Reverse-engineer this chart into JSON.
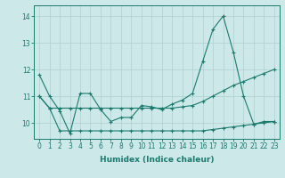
{
  "line1_x": [
    0,
    1,
    2,
    3,
    4,
    5,
    6,
    7,
    8,
    9,
    10,
    11,
    12,
    13,
    14,
    15,
    16,
    17,
    18,
    19,
    20,
    21,
    22,
    23
  ],
  "line1_y": [
    11.8,
    11.0,
    10.45,
    9.6,
    11.1,
    11.1,
    10.5,
    10.05,
    10.2,
    10.2,
    10.65,
    10.6,
    10.5,
    10.7,
    10.85,
    11.1,
    12.3,
    13.5,
    14.0,
    12.65,
    11.0,
    9.95,
    10.05,
    10.05
  ],
  "line2_x": [
    0,
    1,
    2,
    3,
    4,
    5,
    6,
    7,
    8,
    9,
    10,
    11,
    12,
    13,
    14,
    15,
    16,
    17,
    18,
    19,
    20,
    21,
    22,
    23
  ],
  "line2_y": [
    11.0,
    10.55,
    10.55,
    10.55,
    10.55,
    10.55,
    10.55,
    10.55,
    10.55,
    10.55,
    10.55,
    10.55,
    10.55,
    10.55,
    10.6,
    10.65,
    10.8,
    11.0,
    11.2,
    11.4,
    11.55,
    11.7,
    11.85,
    12.0
  ],
  "line3_x": [
    0,
    1,
    2,
    3,
    4,
    5,
    6,
    7,
    8,
    9,
    10,
    11,
    12,
    13,
    14,
    15,
    16,
    17,
    18,
    19,
    20,
    21,
    22,
    23
  ],
  "line3_y": [
    11.0,
    10.55,
    9.7,
    9.7,
    9.7,
    9.7,
    9.7,
    9.7,
    9.7,
    9.7,
    9.7,
    9.7,
    9.7,
    9.7,
    9.7,
    9.7,
    9.7,
    9.75,
    9.8,
    9.85,
    9.9,
    9.95,
    10.0,
    10.05
  ],
  "ylim": [
    9.4,
    14.4
  ],
  "xlim": [
    -0.5,
    23.5
  ],
  "yticks": [
    10,
    11,
    12,
    13,
    14
  ],
  "xticks": [
    0,
    1,
    2,
    3,
    4,
    5,
    6,
    7,
    8,
    9,
    10,
    11,
    12,
    13,
    14,
    15,
    16,
    17,
    18,
    19,
    20,
    21,
    22,
    23
  ],
  "xlabel": "Humidex (Indice chaleur)",
  "color": "#1a7a6e",
  "bg_color": "#cde8e8",
  "grid_color": "#aed0d0",
  "tick_fontsize": 5.5,
  "label_fontsize": 6.5
}
